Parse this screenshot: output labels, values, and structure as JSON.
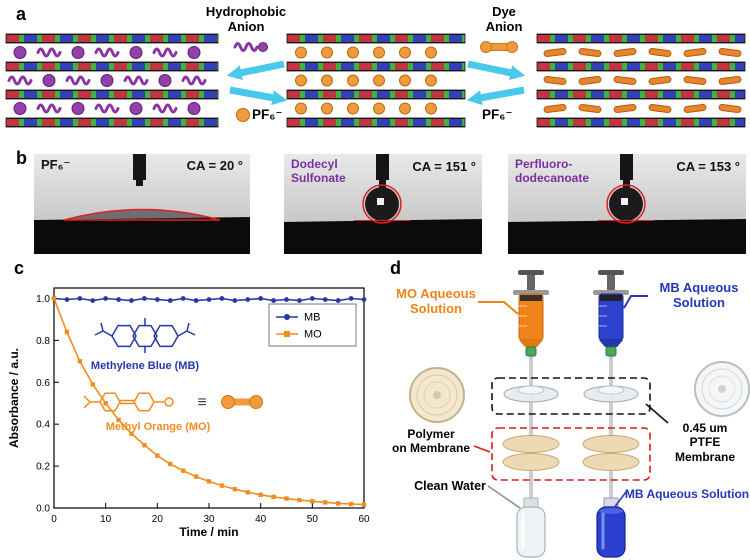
{
  "colors": {
    "arrow_cyan": "#49c9ea",
    "pf6_orange": "#f09a3e",
    "hydrophobic_purple": "#8a35a0",
    "mb_blue": "#2438a8",
    "mo_orange": "#f28c1e",
    "ca_red": "#e02020",
    "label_purple": "#7a2f9e"
  },
  "panel_a": {
    "label": "a",
    "hydrophobic_anion_label": "Hydrophobic\nAnion",
    "dye_anion_label": "Dye\nAnion",
    "pf6_released_left": "PF₆⁻",
    "pf6_released_right": "PF₆⁻"
  },
  "panel_b": {
    "label": "b",
    "images": [
      {
        "name": "PF₆⁻",
        "ca": "CA = 20 °"
      },
      {
        "name": "Dodecyl\nSulfonate",
        "ca": "CA = 151 °"
      },
      {
        "name": "Perfluoro-\ndodecanoate",
        "ca": "CA = 153 °"
      }
    ]
  },
  "panel_c": {
    "label": "c",
    "mb_structure_label": "Methylene Blue (MB)",
    "mo_structure_label": "Methyl Orange (MO)",
    "equiv_symbol": "≡"
  },
  "chart_data": {
    "type": "line",
    "x": [
      0,
      2.5,
      5,
      7.5,
      10,
      12.5,
      15,
      17.5,
      20,
      22.5,
      25,
      27.5,
      30,
      32.5,
      35,
      37.5,
      40,
      42.5,
      45,
      47.5,
      50,
      52.5,
      55,
      57.5,
      60
    ],
    "series": [
      {
        "name": "MB",
        "color": "#2438a8",
        "marker": "circle",
        "values": [
          1.0,
          0.995,
          1.0,
          0.99,
          1.0,
          0.995,
          0.99,
          1.0,
          0.995,
          0.99,
          1.0,
          0.99,
          0.995,
          1.0,
          0.99,
          0.995,
          1.0,
          0.99,
          0.995,
          0.99,
          1.0,
          0.995,
          0.99,
          1.0,
          0.995
        ]
      },
      {
        "name": "MO",
        "color": "#f28c1e",
        "marker": "square",
        "values": [
          1.0,
          0.84,
          0.7,
          0.59,
          0.5,
          0.42,
          0.355,
          0.3,
          0.25,
          0.21,
          0.178,
          0.15,
          0.127,
          0.107,
          0.09,
          0.075,
          0.063,
          0.053,
          0.045,
          0.038,
          0.032,
          0.027,
          0.022,
          0.019,
          0.016
        ]
      }
    ],
    "title": "",
    "xlabel": "Time / min",
    "ylabel": "Absorbance / a.u.",
    "xlim": [
      0,
      60
    ],
    "ylim": [
      0,
      1.05
    ],
    "xticks": [
      0,
      10,
      20,
      30,
      40,
      50,
      60
    ],
    "yticks": [
      0.0,
      0.2,
      0.4,
      0.6,
      0.8,
      1.0
    ],
    "legend_position": "upper right",
    "grid": false
  },
  "panel_d": {
    "label": "d",
    "mo_solution_label": "MO Aqueous\nSolution",
    "mb_solution_label": "MB Aqueous\nSolution",
    "polymer_membrane_label": "Polymer\non Membrane",
    "ptfe_membrane_label": "0.45 um\nPTFE Membrane",
    "clean_water_label": "Clean Water",
    "mb_output_label": "MB Aqueous Solution"
  }
}
